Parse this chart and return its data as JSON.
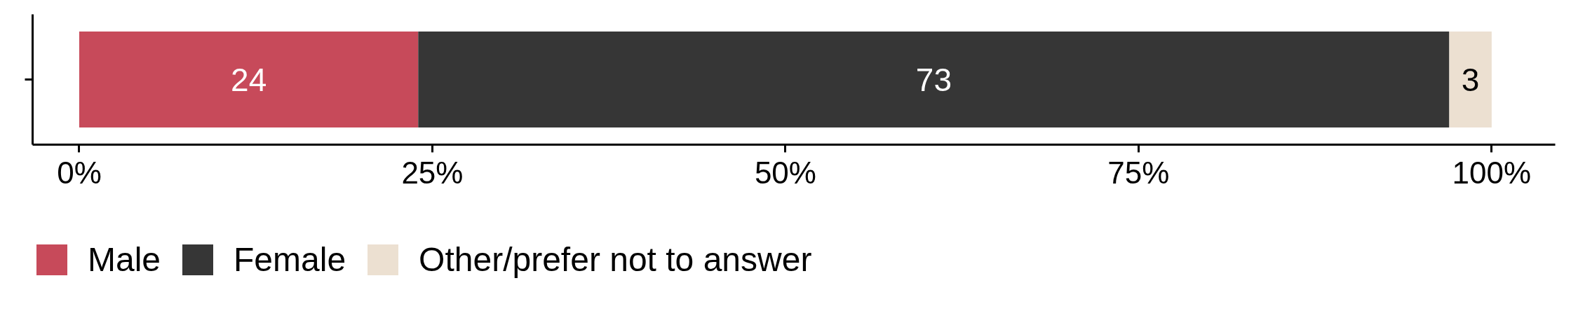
{
  "chart_data": {
    "type": "bar",
    "orientation": "horizontal",
    "stacked": true,
    "categories": [
      null
    ],
    "series": [
      {
        "name": "Male",
        "color": "#c74a5a",
        "values": [
          24
        ]
      },
      {
        "name": "Female",
        "color": "#363636",
        "values": [
          73
        ]
      },
      {
        "name": "Other/prefer not to answer",
        "color": "#ece0d1",
        "values": [
          3
        ]
      }
    ],
    "xlim": [
      -3.3,
      104.5
    ],
    "xticks": [
      {
        "value": 0,
        "label": "0%"
      },
      {
        "value": 25,
        "label": "25%"
      },
      {
        "value": 50,
        "label": "50%"
      },
      {
        "value": 75,
        "label": "75%"
      },
      {
        "value": 100,
        "label": "100%"
      }
    ],
    "data_labels": true,
    "legend": "bottom",
    "tick_labels": "x"
  }
}
